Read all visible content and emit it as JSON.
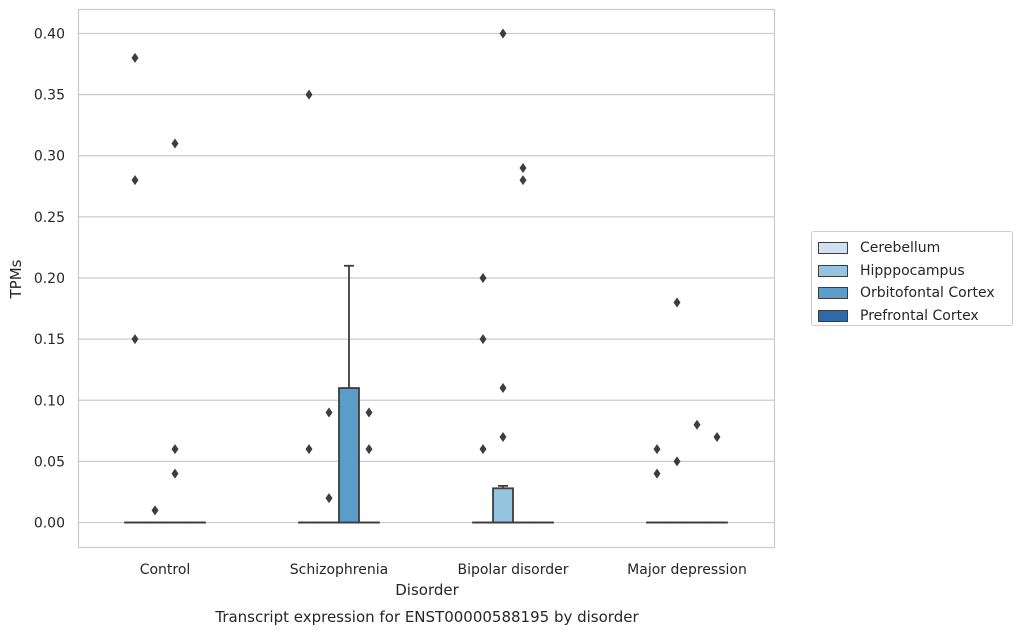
{
  "chart_data": {
    "type": "box",
    "title": "",
    "caption": "Transcript expression for ENST00000588195 by disorder",
    "xlabel": "Disorder",
    "ylabel": "TPMs",
    "ylim": [
      -0.02,
      0.42
    ],
    "yticks": [
      0.0,
      0.05,
      0.1,
      0.15,
      0.2,
      0.25,
      0.3,
      0.35,
      0.4
    ],
    "ytick_labels": [
      "0.00",
      "0.05",
      "0.10",
      "0.15",
      "0.20",
      "0.25",
      "0.30",
      "0.35",
      "0.40"
    ],
    "grid": true,
    "legend_position": "right",
    "categories": [
      "Control",
      "Schizophrenia",
      "Bipolar disorder",
      "Major depression"
    ],
    "series": [
      {
        "name": "Cerebellum",
        "color": "#d0e1f2",
        "boxes": [
          {
            "q1": 0,
            "median": 0,
            "q3": 0,
            "whisker_low": 0,
            "whisker_high": 0,
            "outliers": [
              0.38,
              0.28,
              0.15
            ]
          },
          {
            "q1": 0,
            "median": 0,
            "q3": 0,
            "whisker_low": 0,
            "whisker_high": 0,
            "outliers": [
              0.35,
              0.06
            ]
          },
          {
            "q1": 0,
            "median": 0,
            "q3": 0,
            "whisker_low": 0,
            "whisker_high": 0,
            "outliers": [
              0.2,
              0.15,
              0.06
            ]
          },
          {
            "q1": 0,
            "median": 0,
            "q3": 0,
            "whisker_low": 0,
            "whisker_high": 0,
            "outliers": [
              0.06,
              0.04
            ]
          }
        ]
      },
      {
        "name": "Hipppocampus",
        "color": "#94c4df",
        "boxes": [
          {
            "q1": 0,
            "median": 0,
            "q3": 0,
            "whisker_low": 0,
            "whisker_high": 0,
            "outliers": [
              0.01
            ]
          },
          {
            "q1": 0,
            "median": 0,
            "q3": 0,
            "whisker_low": 0,
            "whisker_high": 0,
            "outliers": [
              0.09,
              0.02
            ]
          },
          {
            "q1": 0,
            "median": 0,
            "q3": 0.028,
            "whisker_low": 0,
            "whisker_high": 0.03,
            "outliers": [
              0.4,
              0.11,
              0.07
            ]
          },
          {
            "q1": 0,
            "median": 0,
            "q3": 0,
            "whisker_low": 0,
            "whisker_high": 0,
            "outliers": [
              0.18,
              0.05
            ]
          }
        ]
      },
      {
        "name": "Orbitofontal Cortex",
        "color": "#5a9dc8",
        "boxes": [
          {
            "q1": 0,
            "median": 0,
            "q3": 0,
            "whisker_low": 0,
            "whisker_high": 0,
            "outliers": [
              0.31,
              0.06,
              0.04
            ]
          },
          {
            "q1": 0,
            "median": 0,
            "q3": 0.11,
            "whisker_low": 0,
            "whisker_high": 0.21,
            "outliers": []
          },
          {
            "q1": 0,
            "median": 0,
            "q3": 0,
            "whisker_low": 0,
            "whisker_high": 0,
            "outliers": [
              0.29,
              0.28
            ]
          },
          {
            "q1": 0,
            "median": 0,
            "q3": 0,
            "whisker_low": 0,
            "whisker_high": 0,
            "outliers": [
              0.08
            ]
          }
        ]
      },
      {
        "name": "Prefrontal Cortex",
        "color": "#2d6aa9",
        "boxes": [
          {
            "q1": 0,
            "median": 0,
            "q3": 0,
            "whisker_low": 0,
            "whisker_high": 0,
            "outliers": []
          },
          {
            "q1": 0,
            "median": 0,
            "q3": 0,
            "whisker_low": 0,
            "whisker_high": 0,
            "outliers": [
              0.09,
              0.06
            ]
          },
          {
            "q1": 0,
            "median": 0,
            "q3": 0,
            "whisker_low": 0,
            "whisker_high": 0,
            "outliers": []
          },
          {
            "q1": 0,
            "median": 0,
            "q3": 0,
            "whisker_low": 0,
            "whisker_high": 0,
            "outliers": [
              0.07
            ]
          }
        ]
      }
    ]
  }
}
